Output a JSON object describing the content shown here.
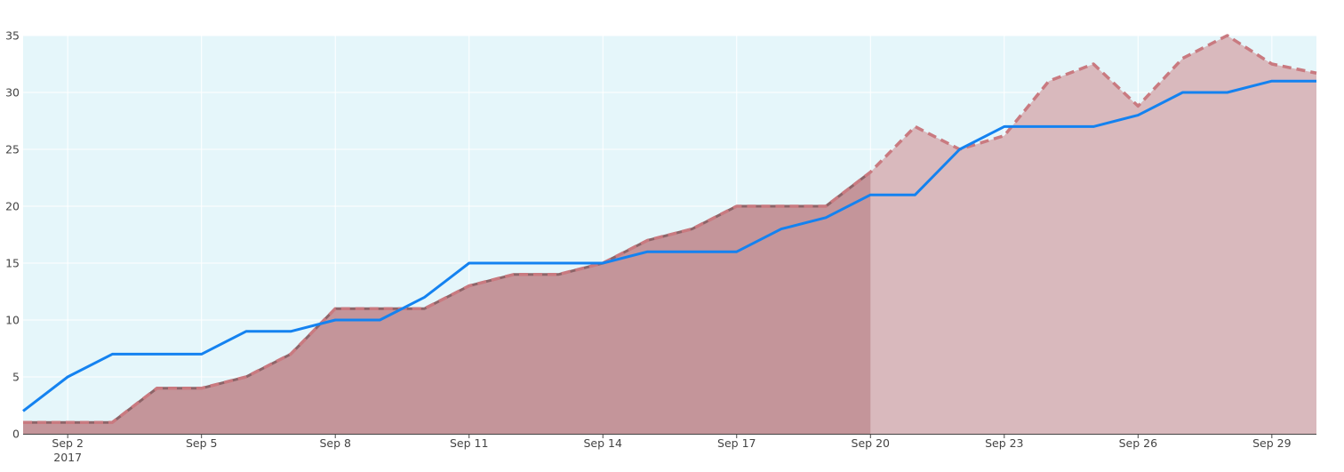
{
  "chart_data": {
    "type": "area",
    "title": "",
    "xlabel": "",
    "ylabel": "",
    "x_start": "2017-09-01",
    "x_end": "2017-09-30",
    "xlim": [
      "2017-09-01",
      "2017-09-30"
    ],
    "ylim": [
      0,
      35
    ],
    "grid": true,
    "x_ticks": [
      {
        "date": "2017-09-02",
        "label": "Sep 2",
        "sublabel": "2017"
      },
      {
        "date": "2017-09-05",
        "label": "Sep 5",
        "sublabel": ""
      },
      {
        "date": "2017-09-08",
        "label": "Sep 8",
        "sublabel": ""
      },
      {
        "date": "2017-09-11",
        "label": "Sep 11",
        "sublabel": ""
      },
      {
        "date": "2017-09-14",
        "label": "Sep 14",
        "sublabel": ""
      },
      {
        "date": "2017-09-17",
        "label": "Sep 17",
        "sublabel": ""
      },
      {
        "date": "2017-09-20",
        "label": "Sep 20",
        "sublabel": ""
      },
      {
        "date": "2017-09-23",
        "label": "Sep 23",
        "sublabel": ""
      },
      {
        "date": "2017-09-26",
        "label": "Sep 26",
        "sublabel": ""
      },
      {
        "date": "2017-09-29",
        "label": "Sep 29",
        "sublabel": ""
      }
    ],
    "y_ticks": [
      0,
      5,
      10,
      15,
      20,
      25,
      30,
      35
    ],
    "x": [
      "2017-09-01",
      "2017-09-02",
      "2017-09-03",
      "2017-09-04",
      "2017-09-05",
      "2017-09-06",
      "2017-09-07",
      "2017-09-08",
      "2017-09-09",
      "2017-09-10",
      "2017-09-11",
      "2017-09-12",
      "2017-09-13",
      "2017-09-14",
      "2017-09-15",
      "2017-09-16",
      "2017-09-17",
      "2017-09-18",
      "2017-09-19",
      "2017-09-20",
      "2017-09-21",
      "2017-09-22",
      "2017-09-23",
      "2017-09-24",
      "2017-09-25",
      "2017-09-26",
      "2017-09-27",
      "2017-09-28",
      "2017-09-29",
      "2017-09-30"
    ],
    "series": [
      {
        "role": "actual",
        "style": "filled area (dark), ends Sep 20",
        "color": "#c4959a",
        "x": [
          "2017-09-01",
          "2017-09-02",
          "2017-09-03",
          "2017-09-04",
          "2017-09-05",
          "2017-09-06",
          "2017-09-07",
          "2017-09-08",
          "2017-09-09",
          "2017-09-10",
          "2017-09-11",
          "2017-09-12",
          "2017-09-13",
          "2017-09-14",
          "2017-09-15",
          "2017-09-16",
          "2017-09-17",
          "2017-09-18",
          "2017-09-19",
          "2017-09-20"
        ],
        "values": [
          1,
          1,
          1,
          4,
          4,
          5,
          7,
          11,
          11,
          11,
          13,
          14,
          14,
          15,
          17,
          18,
          20,
          20,
          20,
          23
        ]
      },
      {
        "role": "forecast",
        "style": "filled area (light) with dashed outline",
        "color": "#d9b9bd",
        "line_color": "#c97a80",
        "x": [
          "2017-09-01",
          "2017-09-02",
          "2017-09-03",
          "2017-09-04",
          "2017-09-05",
          "2017-09-06",
          "2017-09-07",
          "2017-09-08",
          "2017-09-09",
          "2017-09-10",
          "2017-09-11",
          "2017-09-12",
          "2017-09-13",
          "2017-09-14",
          "2017-09-15",
          "2017-09-16",
          "2017-09-17",
          "2017-09-18",
          "2017-09-19",
          "2017-09-20",
          "2017-09-21",
          "2017-09-22",
          "2017-09-23",
          "2017-09-24",
          "2017-09-25",
          "2017-09-26",
          "2017-09-27",
          "2017-09-28",
          "2017-09-29",
          "2017-09-30"
        ],
        "values": [
          1,
          1,
          1,
          4,
          4,
          5,
          7,
          11,
          11,
          11,
          13,
          14,
          14,
          15,
          17,
          18,
          20,
          20,
          20,
          23,
          27,
          25,
          26.2,
          31,
          32.5,
          28.8,
          33,
          35,
          32.5,
          31.7
        ]
      },
      {
        "role": "line",
        "style": "solid line",
        "color": "#1482f0",
        "x": [
          "2017-09-01",
          "2017-09-02",
          "2017-09-03",
          "2017-09-04",
          "2017-09-05",
          "2017-09-06",
          "2017-09-07",
          "2017-09-08",
          "2017-09-09",
          "2017-09-10",
          "2017-09-11",
          "2017-09-12",
          "2017-09-13",
          "2017-09-14",
          "2017-09-15",
          "2017-09-16",
          "2017-09-17",
          "2017-09-18",
          "2017-09-19",
          "2017-09-20",
          "2017-09-21",
          "2017-09-22",
          "2017-09-23",
          "2017-09-24",
          "2017-09-25",
          "2017-09-26",
          "2017-09-27",
          "2017-09-28",
          "2017-09-29",
          "2017-09-30"
        ],
        "values": [
          2,
          5,
          7,
          7,
          7,
          9,
          9,
          10,
          10,
          12,
          15,
          15,
          15,
          15,
          16,
          16,
          16,
          18,
          19,
          21,
          21,
          25,
          27,
          27,
          27,
          28,
          30,
          30,
          31,
          31
        ]
      }
    ],
    "colors": {
      "plot_background": "#e5f6fa",
      "grid": "#ffffff",
      "axis_line": "#444444"
    }
  }
}
